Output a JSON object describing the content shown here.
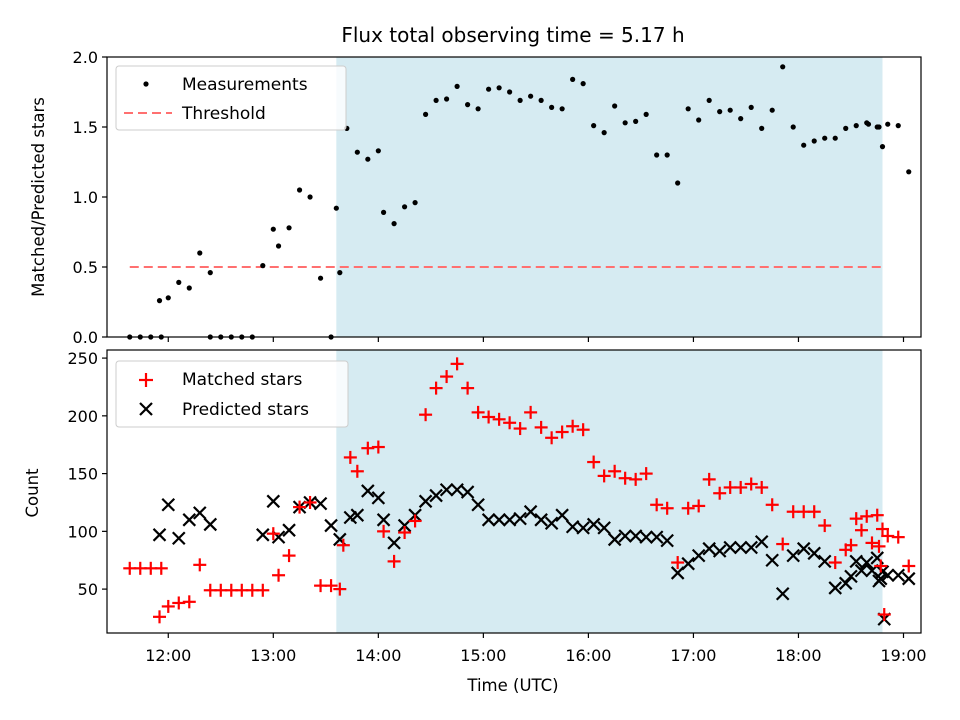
{
  "chart_data": [
    {
      "type": "scatter",
      "title": "Flux total observing time = 5.17 h",
      "ylabel": "Matched/Predicted stars",
      "xlabel": "",
      "ylim": [
        0,
        2.0
      ],
      "xlim": [
        "11:25",
        "19:10"
      ],
      "yticks": [
        "0.0",
        "0.5",
        "1.0",
        "1.5",
        "2.0"
      ],
      "shaded_region": {
        "from": "13:36",
        "to": "18:48",
        "color": "#add8e6"
      },
      "threshold": {
        "name": "Threshold",
        "y": 0.5,
        "from": "11:38",
        "to": "18:48",
        "color": "#ff7070"
      },
      "legend": {
        "position": "upper left",
        "entries": [
          "Measurements",
          "Threshold"
        ]
      },
      "series": [
        {
          "name": "Measurements",
          "color": "#000000",
          "points": [
            [
              "11:38",
              0.0
            ],
            [
              "11:44",
              0.0
            ],
            [
              "11:50",
              0.0
            ],
            [
              "11:56",
              0.0
            ],
            [
              "11:55",
              0.26
            ],
            [
              "12:00",
              0.28
            ],
            [
              "12:06",
              0.39
            ],
            [
              "12:12",
              0.35
            ],
            [
              "12:18",
              0.6
            ],
            [
              "12:24",
              0.46
            ],
            [
              "12:24",
              0.0
            ],
            [
              "12:30",
              0.0
            ],
            [
              "12:36",
              0.0
            ],
            [
              "12:42",
              0.0
            ],
            [
              "12:48",
              0.0
            ],
            [
              "12:54",
              0.51
            ],
            [
              "13:00",
              0.77
            ],
            [
              "13:03",
              0.65
            ],
            [
              "13:09",
              0.78
            ],
            [
              "13:15",
              1.05
            ],
            [
              "13:21",
              1.0
            ],
            [
              "13:27",
              0.42
            ],
            [
              "13:33",
              0.0
            ],
            [
              "13:38",
              0.46
            ],
            [
              "13:36",
              0.92
            ],
            [
              "13:42",
              1.49
            ],
            [
              "13:48",
              1.32
            ],
            [
              "13:54",
              1.27
            ],
            [
              "14:00",
              1.33
            ],
            [
              "14:03",
              0.89
            ],
            [
              "14:09",
              0.81
            ],
            [
              "14:15",
              0.93
            ],
            [
              "14:21",
              0.96
            ],
            [
              "14:27",
              1.59
            ],
            [
              "14:33",
              1.69
            ],
            [
              "14:39",
              1.7
            ],
            [
              "14:45",
              1.79
            ],
            [
              "14:51",
              1.66
            ],
            [
              "14:57",
              1.63
            ],
            [
              "15:03",
              1.77
            ],
            [
              "15:09",
              1.78
            ],
            [
              "15:15",
              1.75
            ],
            [
              "15:21",
              1.69
            ],
            [
              "15:27",
              1.72
            ],
            [
              "15:33",
              1.69
            ],
            [
              "15:39",
              1.64
            ],
            [
              "15:45",
              1.63
            ],
            [
              "15:51",
              1.84
            ],
            [
              "15:57",
              1.81
            ],
            [
              "16:03",
              1.51
            ],
            [
              "16:09",
              1.46
            ],
            [
              "16:15",
              1.65
            ],
            [
              "16:21",
              1.53
            ],
            [
              "16:27",
              1.54
            ],
            [
              "16:33",
              1.59
            ],
            [
              "16:39",
              1.3
            ],
            [
              "16:45",
              1.3
            ],
            [
              "16:51",
              1.1
            ],
            [
              "16:57",
              1.63
            ],
            [
              "17:03",
              1.55
            ],
            [
              "17:09",
              1.69
            ],
            [
              "17:15",
              1.61
            ],
            [
              "17:21",
              1.62
            ],
            [
              "17:27",
              1.56
            ],
            [
              "17:33",
              1.64
            ],
            [
              "17:39",
              1.49
            ],
            [
              "17:45",
              1.62
            ],
            [
              "17:51",
              1.93
            ],
            [
              "17:57",
              1.5
            ],
            [
              "18:03",
              1.37
            ],
            [
              "18:09",
              1.4
            ],
            [
              "18:15",
              1.42
            ],
            [
              "18:21",
              1.42
            ],
            [
              "18:27",
              1.49
            ],
            [
              "18:33",
              1.51
            ],
            [
              "18:39",
              1.53
            ],
            [
              "18:45",
              1.5
            ],
            [
              "18:51",
              1.52
            ],
            [
              "18:57",
              1.51
            ],
            [
              "19:03",
              1.18
            ],
            [
              "18:40",
              1.52
            ],
            [
              "18:46",
              1.5
            ],
            [
              "18:48",
              1.36
            ]
          ]
        }
      ]
    },
    {
      "type": "scatter",
      "title": "",
      "xlabel": "Time (UTC)",
      "ylabel": "Count",
      "ylim": [
        12,
        257
      ],
      "yticks": [
        "50",
        "100",
        "150",
        "200",
        "250"
      ],
      "xticks": [
        "12:00",
        "13:00",
        "14:00",
        "15:00",
        "16:00",
        "17:00",
        "18:00",
        "19:00"
      ],
      "shaded_region": {
        "from": "13:36",
        "to": "18:48",
        "color": "#add8e6"
      },
      "legend": {
        "position": "upper left",
        "entries": [
          "Matched stars",
          "Predicted stars"
        ]
      },
      "series": [
        {
          "name": "Matched stars",
          "marker": "+",
          "color": "#ff0000",
          "points": [
            [
              "11:38",
              68
            ],
            [
              "11:44",
              68
            ],
            [
              "11:50",
              68
            ],
            [
              "11:56",
              68
            ],
            [
              "11:55",
              26
            ],
            [
              "12:00",
              35
            ],
            [
              "12:06",
              38
            ],
            [
              "12:12",
              39
            ],
            [
              "12:18",
              71
            ],
            [
              "12:24",
              49
            ],
            [
              "12:30",
              49
            ],
            [
              "12:36",
              49
            ],
            [
              "12:42",
              49
            ],
            [
              "12:48",
              49
            ],
            [
              "12:54",
              49
            ],
            [
              "13:00",
              98
            ],
            [
              "13:03",
              62
            ],
            [
              "13:09",
              79
            ],
            [
              "13:15",
              121
            ],
            [
              "13:21",
              125
            ],
            [
              "13:27",
              53
            ],
            [
              "13:33",
              53
            ],
            [
              "13:38",
              50
            ],
            [
              "13:40",
              88
            ],
            [
              "13:44",
              164
            ],
            [
              "13:48",
              152
            ],
            [
              "13:54",
              172
            ],
            [
              "14:00",
              173
            ],
            [
              "14:03",
              100
            ],
            [
              "14:09",
              74
            ],
            [
              "14:15",
              99
            ],
            [
              "14:21",
              109
            ],
            [
              "14:27",
              201
            ],
            [
              "14:33",
              224
            ],
            [
              "14:39",
              234
            ],
            [
              "14:45",
              245
            ],
            [
              "14:51",
              224
            ],
            [
              "14:57",
              203
            ],
            [
              "15:03",
              199
            ],
            [
              "15:09",
              197
            ],
            [
              "15:15",
              194
            ],
            [
              "15:21",
              189
            ],
            [
              "15:27",
              203
            ],
            [
              "15:33",
              190
            ],
            [
              "15:39",
              181
            ],
            [
              "15:45",
              186
            ],
            [
              "15:51",
              191
            ],
            [
              "15:57",
              188
            ],
            [
              "16:03",
              160
            ],
            [
              "16:09",
              148
            ],
            [
              "16:15",
              152
            ],
            [
              "16:21",
              146
            ],
            [
              "16:27",
              145
            ],
            [
              "16:33",
              150
            ],
            [
              "16:39",
              123
            ],
            [
              "16:45",
              120
            ],
            [
              "16:51",
              73
            ],
            [
              "16:57",
              120
            ],
            [
              "17:03",
              122
            ],
            [
              "17:09",
              145
            ],
            [
              "17:15",
              133
            ],
            [
              "17:21",
              138
            ],
            [
              "17:27",
              138
            ],
            [
              "17:33",
              141
            ],
            [
              "17:39",
              138
            ],
            [
              "17:45",
              123
            ],
            [
              "17:51",
              89
            ],
            [
              "17:57",
              117
            ],
            [
              "18:03",
              117
            ],
            [
              "18:09",
              117
            ],
            [
              "18:15",
              105
            ],
            [
              "18:21",
              73
            ],
            [
              "18:27",
              84
            ],
            [
              "18:33",
              111
            ],
            [
              "18:39",
              113
            ],
            [
              "18:45",
              114
            ],
            [
              "18:51",
              96
            ],
            [
              "18:57",
              95
            ],
            [
              "19:03",
              70
            ],
            [
              "18:30",
              88
            ],
            [
              "18:36",
              101
            ],
            [
              "18:42",
              90
            ],
            [
              "18:48",
              102
            ],
            [
              "18:46",
              87
            ],
            [
              "18:47",
              70
            ],
            [
              "18:49",
              28
            ]
          ]
        },
        {
          "name": "Predicted stars",
          "marker": "x",
          "color": "#000000",
          "points": [
            [
              "11:55",
              97
            ],
            [
              "12:00",
              123
            ],
            [
              "12:06",
              94
            ],
            [
              "12:12",
              110
            ],
            [
              "12:18",
              116
            ],
            [
              "12:24",
              106
            ],
            [
              "12:54",
              97
            ],
            [
              "13:00",
              126
            ],
            [
              "13:03",
              95
            ],
            [
              "13:09",
              101
            ],
            [
              "13:15",
              121
            ],
            [
              "13:21",
              125
            ],
            [
              "13:27",
              124
            ],
            [
              "13:33",
              105
            ],
            [
              "13:38",
              93
            ],
            [
              "13:44",
              112
            ],
            [
              "13:48",
              114
            ],
            [
              "13:54",
              135
            ],
            [
              "14:00",
              129
            ],
            [
              "14:03",
              110
            ],
            [
              "14:09",
              90
            ],
            [
              "14:15",
              105
            ],
            [
              "14:21",
              114
            ],
            [
              "14:27",
              126
            ],
            [
              "14:33",
              131
            ],
            [
              "14:39",
              136
            ],
            [
              "14:45",
              136
            ],
            [
              "14:51",
              134
            ],
            [
              "14:57",
              123
            ],
            [
              "15:03",
              110
            ],
            [
              "15:09",
              110
            ],
            [
              "15:15",
              110
            ],
            [
              "15:21",
              111
            ],
            [
              "15:27",
              117
            ],
            [
              "15:33",
              110
            ],
            [
              "15:39",
              107
            ],
            [
              "15:45",
              114
            ],
            [
              "15:51",
              104
            ],
            [
              "15:57",
              103
            ],
            [
              "16:03",
              106
            ],
            [
              "16:09",
              103
            ],
            [
              "16:15",
              93
            ],
            [
              "16:21",
              96
            ],
            [
              "16:27",
              96
            ],
            [
              "16:33",
              95
            ],
            [
              "16:39",
              95
            ],
            [
              "16:45",
              92
            ],
            [
              "16:51",
              64
            ],
            [
              "16:57",
              72
            ],
            [
              "17:03",
              79
            ],
            [
              "17:09",
              85
            ],
            [
              "17:15",
              83
            ],
            [
              "17:21",
              86
            ],
            [
              "17:27",
              86
            ],
            [
              "17:33",
              86
            ],
            [
              "17:39",
              91
            ],
            [
              "17:45",
              75
            ],
            [
              "17:51",
              46
            ],
            [
              "17:57",
              79
            ],
            [
              "18:03",
              85
            ],
            [
              "18:09",
              81
            ],
            [
              "18:15",
              74
            ],
            [
              "18:21",
              51
            ],
            [
              "18:27",
              55
            ],
            [
              "18:33",
              74
            ],
            [
              "18:39",
              73
            ],
            [
              "18:45",
              77
            ],
            [
              "18:51",
              62
            ],
            [
              "18:57",
              62
            ],
            [
              "19:03",
              59
            ],
            [
              "18:30",
              61
            ],
            [
              "18:36",
              66
            ],
            [
              "18:42",
              66
            ],
            [
              "18:48",
              65
            ],
            [
              "18:46",
              57
            ],
            [
              "18:47",
              59
            ],
            [
              "18:49",
              24
            ]
          ]
        }
      ]
    }
  ]
}
